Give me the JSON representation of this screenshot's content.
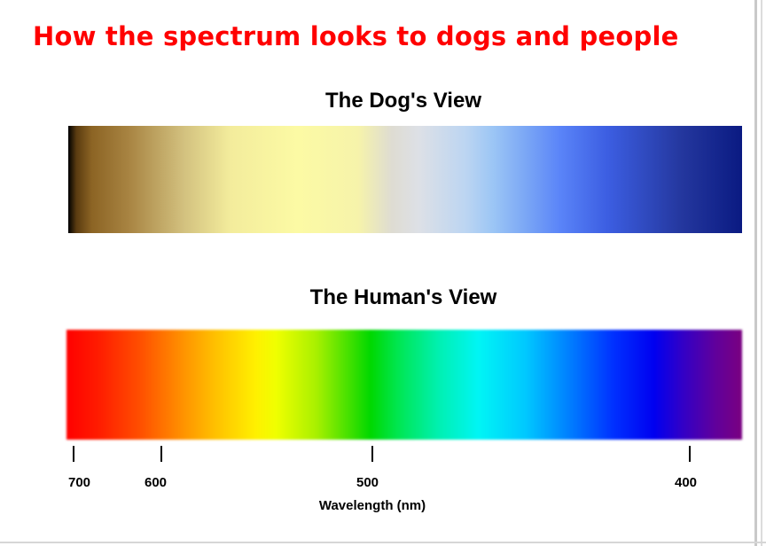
{
  "title": "How the spectrum looks to dogs and people",
  "panels": {
    "dog": {
      "title": "The Dog's View"
    },
    "human": {
      "title": "The Human's View"
    }
  },
  "axis": {
    "label": "Wavelength (nm)",
    "ticks": [
      {
        "value": 700,
        "label": "700"
      },
      {
        "value": 600,
        "label": "600"
      },
      {
        "value": 500,
        "label": "500"
      },
      {
        "value": 400,
        "label": "400"
      }
    ]
  },
  "colors": {
    "title": "#ff0000",
    "text": "#000000"
  }
}
